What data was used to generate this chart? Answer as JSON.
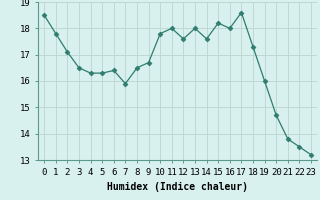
{
  "x": [
    0,
    1,
    2,
    3,
    4,
    5,
    6,
    7,
    8,
    9,
    10,
    11,
    12,
    13,
    14,
    15,
    16,
    17,
    18,
    19,
    20,
    21,
    22,
    23
  ],
  "y": [
    18.5,
    17.8,
    17.1,
    16.5,
    16.3,
    16.3,
    16.4,
    15.9,
    16.5,
    16.7,
    17.8,
    18.0,
    17.6,
    18.0,
    17.6,
    18.2,
    18.0,
    18.6,
    17.3,
    16.0,
    14.7,
    13.8,
    13.5,
    13.2
  ],
  "line_color": "#2e7d6e",
  "marker": "D",
  "marker_size": 2.5,
  "bg_color": "#d8f0ee",
  "grid_color": "#c0d8d4",
  "xlabel": "Humidex (Indice chaleur)",
  "ylim": [
    13,
    19
  ],
  "xlim": [
    -0.5,
    23.5
  ],
  "yticks": [
    13,
    14,
    15,
    16,
    17,
    18,
    19
  ],
  "xticks": [
    0,
    1,
    2,
    3,
    4,
    5,
    6,
    7,
    8,
    9,
    10,
    11,
    12,
    13,
    14,
    15,
    16,
    17,
    18,
    19,
    20,
    21,
    22,
    23
  ],
  "xlabel_fontsize": 7,
  "tick_fontsize": 6.5
}
